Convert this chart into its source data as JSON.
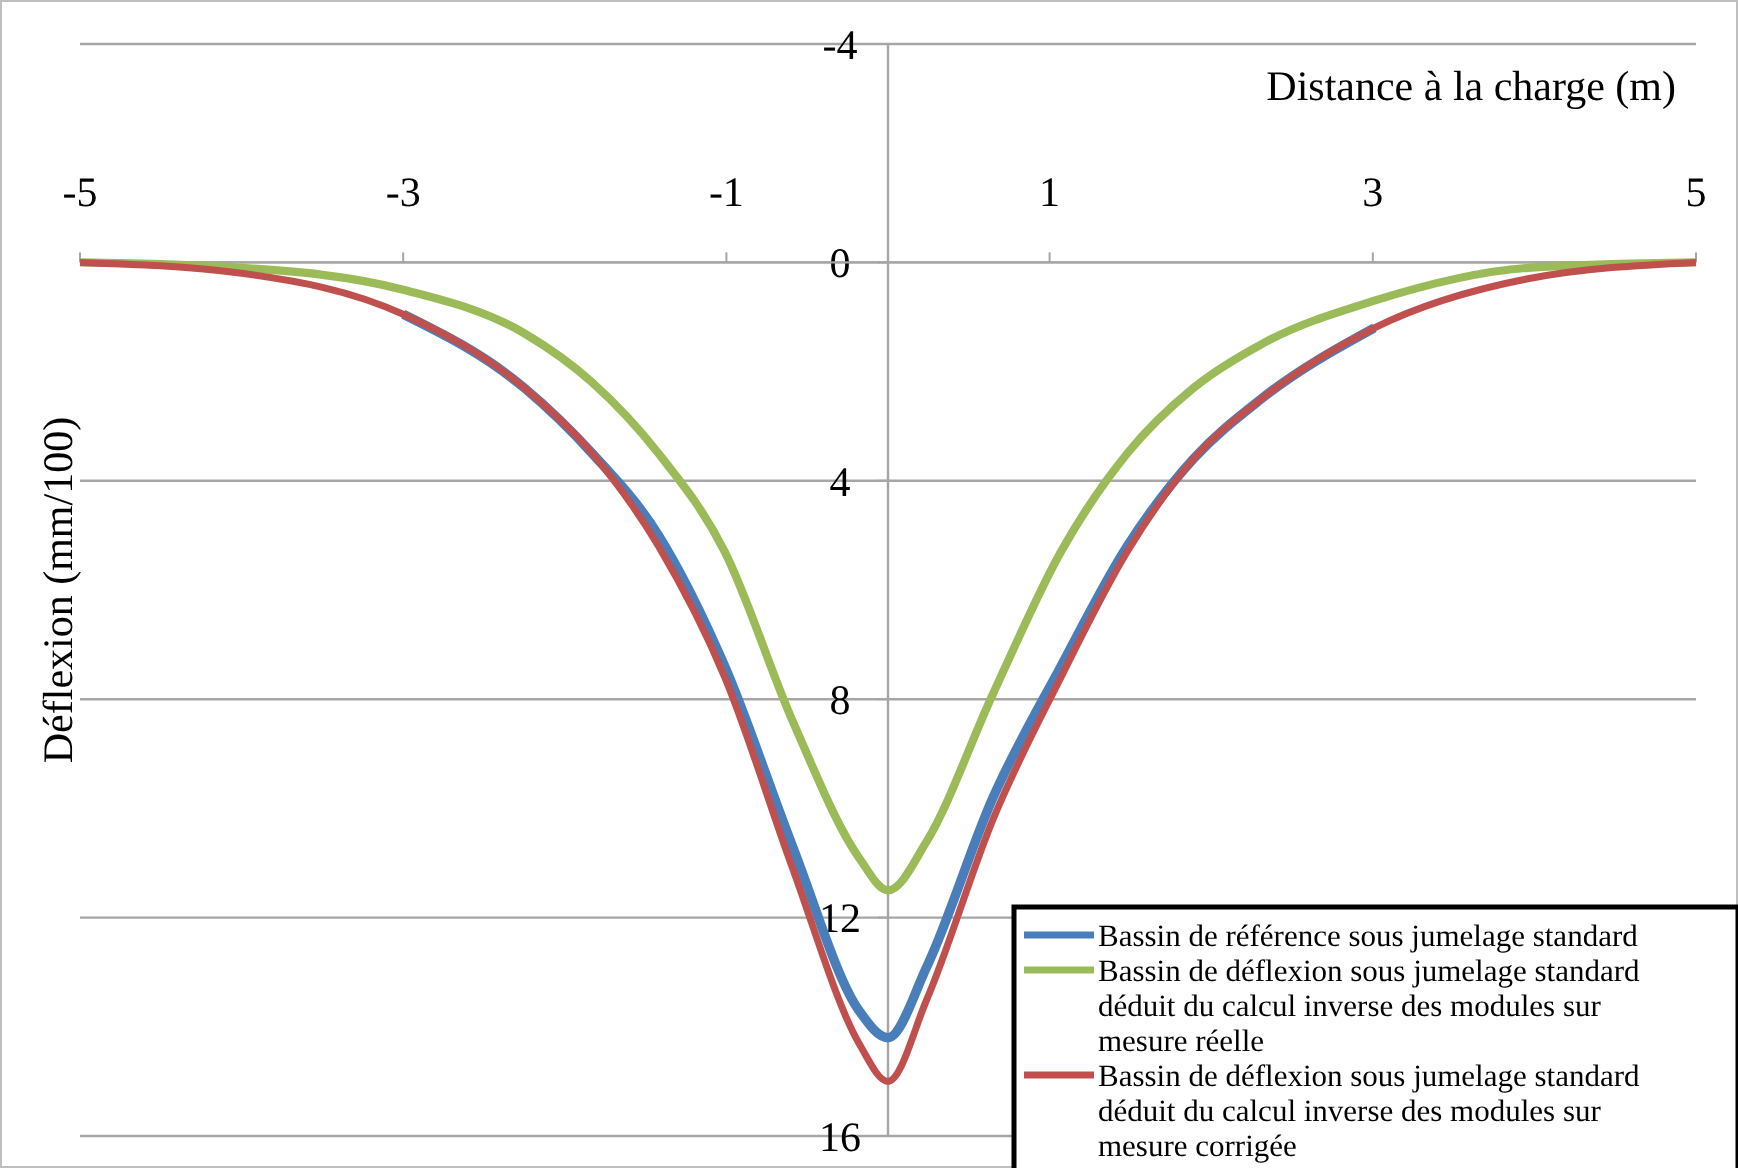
{
  "chart_data": {
    "type": "line",
    "xlabel": "Distance à la charge (m)",
    "ylabel": "Déflexion (mm/100)",
    "xlim": [
      -5,
      5
    ],
    "xticks": [
      -5,
      -3,
      -1,
      1,
      3,
      5
    ],
    "ylim": [
      16,
      -4
    ],
    "yticks": [
      -4,
      0,
      4,
      8,
      12,
      16
    ],
    "grid": "y",
    "legend": "bottom right",
    "marker": "none",
    "line_style": "solid",
    "series": [
      {
        "name": "Bassin de référence sous jumelage standard",
        "color": "#4a7ebb",
        "x": [
          -3,
          -2.25,
          -1.83,
          -1.42,
          -1.01,
          -0.59,
          -0.18,
          0,
          0.24,
          0.65,
          1.07,
          1.48,
          1.89,
          2.31,
          3.01
        ],
        "values": [
          0.95,
          2.3,
          3.5,
          5.0,
          7.4,
          10.7,
          13.7,
          14.2,
          12.9,
          9.8,
          7.4,
          5.2,
          3.6,
          2.5,
          1.2
        ]
      },
      {
        "name": "Bassin de déflexion sous jumelage standard déduit du calcul inverse des modules sur mesure réelle",
        "color": "#9bbb59",
        "x": [
          -5,
          -4,
          -3,
          -2.25,
          -1.83,
          -1.42,
          -1.01,
          -0.59,
          -0.18,
          0,
          0.24,
          0.65,
          1.07,
          1.48,
          1.89,
          2.31,
          3.01,
          3.96,
          5
        ],
        "values": [
          0,
          0.1,
          0.5,
          1.3,
          2.2,
          3.5,
          5.3,
          8.4,
          10.9,
          11.5,
          10.6,
          7.9,
          5.3,
          3.5,
          2.3,
          1.5,
          0.7,
          0.1,
          0
        ]
      },
      {
        "name": "Bassin de déflexion sous jumelage standard déduit du calcul inverse des modules sur mesure corrigée",
        "color": "#c0504d",
        "x": [
          -5,
          -4,
          -3,
          -2.25,
          -1.83,
          -1.42,
          -1.01,
          -0.59,
          -0.18,
          0,
          0.24,
          0.65,
          1.07,
          1.48,
          1.89,
          2.31,
          3.01,
          3.96,
          5
        ],
        "values": [
          0,
          0.2,
          0.95,
          2.3,
          3.5,
          5.2,
          7.6,
          11.1,
          14.3,
          15.0,
          13.5,
          10.2,
          7.6,
          5.3,
          3.6,
          2.5,
          1.2,
          0.3,
          0
        ]
      }
    ]
  }
}
